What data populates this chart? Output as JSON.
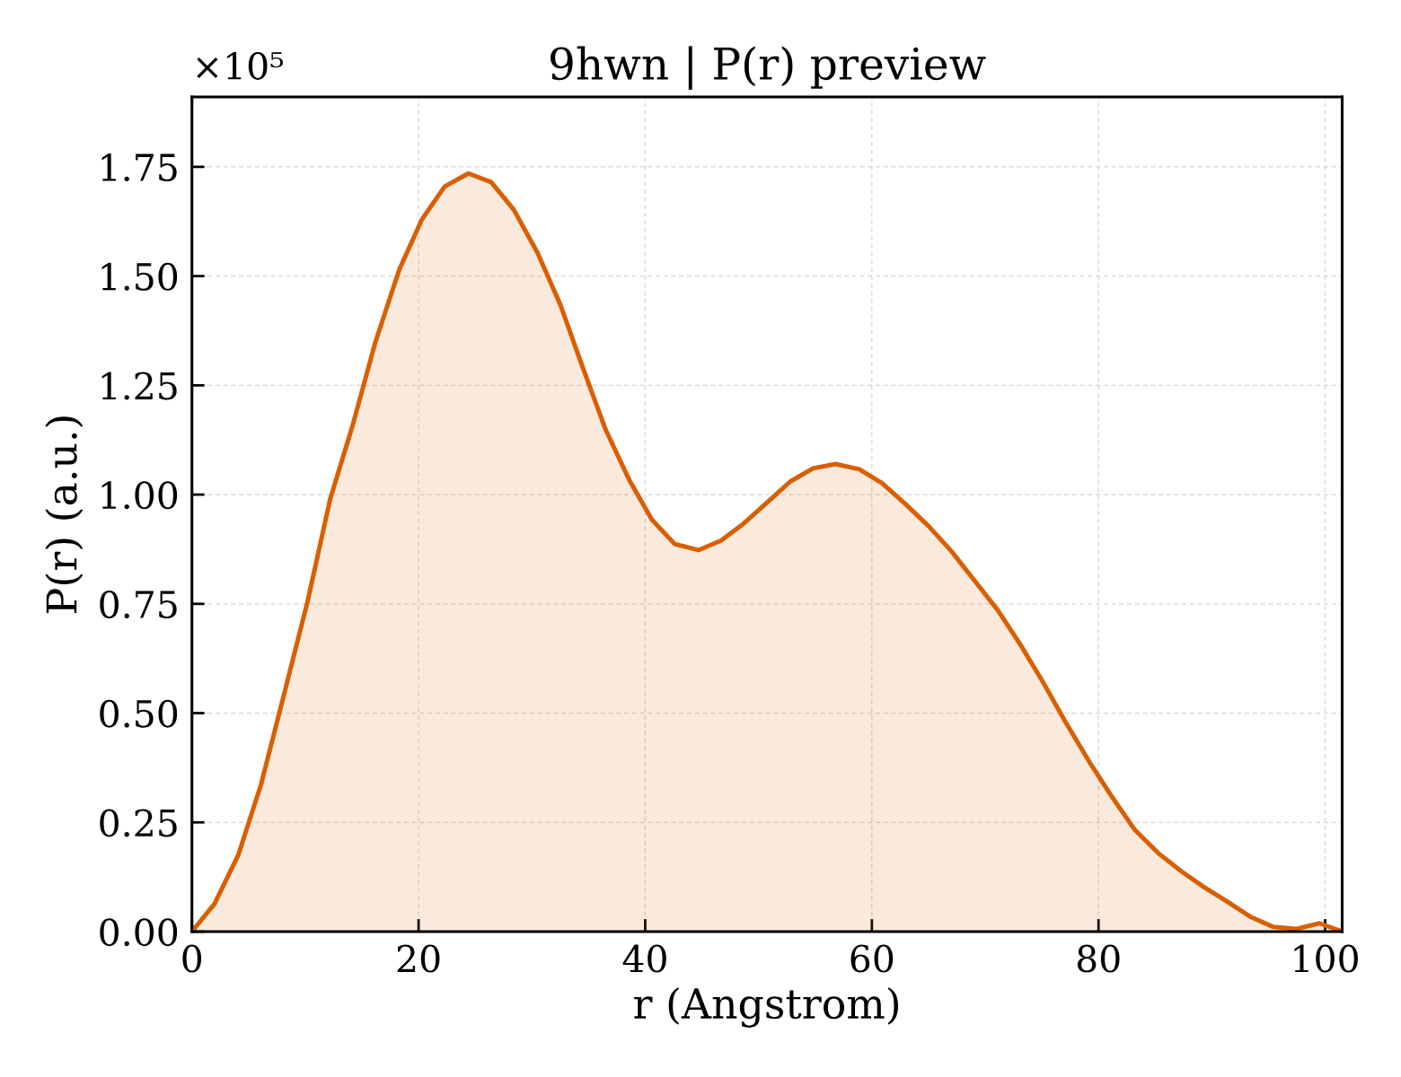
{
  "chart_data": {
    "type": "area",
    "title": "9hwn | P(r) preview",
    "xlabel": "r (Angstrom)",
    "ylabel": "P(r) (a.u.)",
    "annotations": [
      "×10⁵"
    ],
    "x": [
      0,
      2,
      4.1,
      6.1,
      8.1,
      10.2,
      12.2,
      14.2,
      16.2,
      18.3,
      20.3,
      22.3,
      24.4,
      26.4,
      28.4,
      30.5,
      32.5,
      34.5,
      36.5,
      38.6,
      40.6,
      42.6,
      44.7,
      46.7,
      48.7,
      50.8,
      52.8,
      54.8,
      56.8,
      58.9,
      60.9,
      62.9,
      65,
      67,
      69,
      71.1,
      73.1,
      75.1,
      77.1,
      79.2,
      81.2,
      83.2,
      85.3,
      87.3,
      89.3,
      91.4,
      93.4,
      95.4,
      97.4,
      99.5,
      101.5
    ],
    "series": [
      {
        "color": "#d95f02",
        "values": [
          0,
          0.064,
          0.176,
          0.337,
          0.54,
          0.755,
          0.99,
          1.16,
          1.35,
          1.515,
          1.63,
          1.705,
          1.735,
          1.715,
          1.652,
          1.553,
          1.435,
          1.29,
          1.149,
          1.033,
          0.942,
          0.887,
          0.873,
          0.895,
          0.934,
          0.983,
          1.03,
          1.06,
          1.07,
          1.058,
          1.026,
          0.98,
          0.928,
          0.871,
          0.805,
          0.736,
          0.657,
          0.571,
          0.479,
          0.388,
          0.308,
          0.233,
          0.179,
          0.138,
          0.102,
          0.068,
          0.034,
          0.011,
          0.006,
          0.019,
          0
        ]
      }
    ],
    "xlim": [
      0,
      101.5
    ],
    "xticks": [
      0,
      20,
      40,
      60,
      80,
      100
    ],
    "ylim": [
      0,
      1.91
    ],
    "yticks": [
      {
        "value": 0,
        "label": "0.00"
      },
      0.25,
      {
        "value": 0.5,
        "label": "0.50"
      },
      0.75,
      {
        "value": 1,
        "label": "1.00"
      },
      1.25,
      {
        "value": 1.5,
        "label": "1.50"
      },
      1.75
    ],
    "grid": true
  }
}
